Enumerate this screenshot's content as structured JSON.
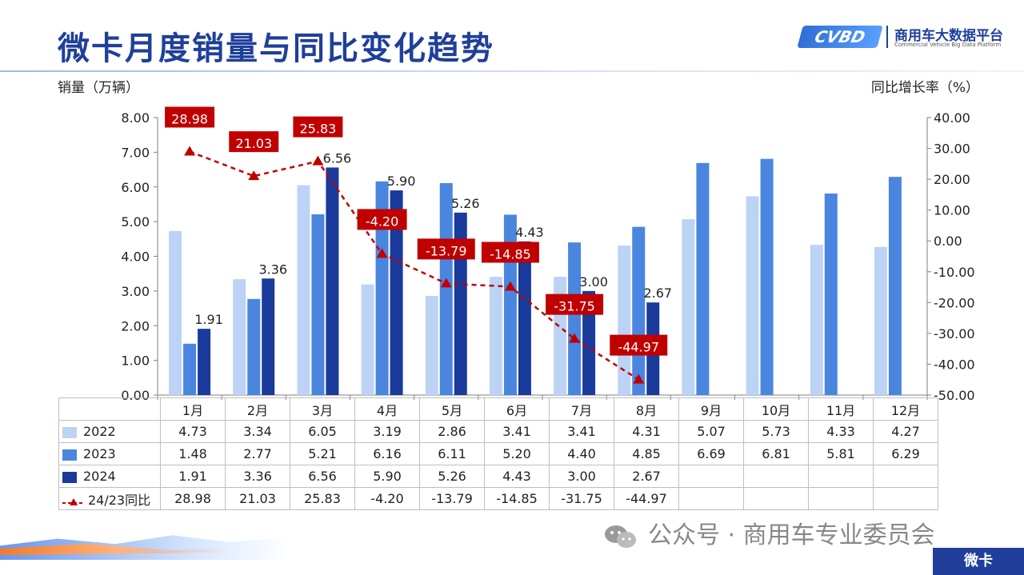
{
  "title": "微卡月度销量与同比变化趋势",
  "logo": {
    "mark": "CVBD",
    "name": "商用车大数据平台",
    "sub": "Commercial Vehicle Big Data Platform"
  },
  "colors": {
    "s2022": "#bcd3f5",
    "s2023": "#4a86e0",
    "s2024": "#1a3a9c",
    "yoy": "#c00000",
    "title": "#1f3f9a"
  },
  "chart_data": {
    "type": "bar",
    "ylabel_left": "销量（万辆）",
    "ylabel_right": "同比增长率（%）",
    "categories": [
      "1月",
      "2月",
      "3月",
      "4月",
      "5月",
      "6月",
      "7月",
      "8月",
      "9月",
      "10月",
      "11月",
      "12月"
    ],
    "y_left_ticks": [
      "0.00",
      "1.00",
      "2.00",
      "3.00",
      "4.00",
      "5.00",
      "6.00",
      "7.00",
      "8.00"
    ],
    "y_right_ticks": [
      "-50.00",
      "-40.00",
      "-30.00",
      "-20.00",
      "-10.00",
      "0.00",
      "10.00",
      "20.00",
      "30.00",
      "40.00"
    ],
    "ylim_left": [
      0,
      8
    ],
    "ylim_right": [
      -50,
      40
    ],
    "series": [
      {
        "name": "2022",
        "values": [
          4.73,
          3.34,
          6.05,
          3.19,
          2.86,
          3.41,
          3.41,
          4.31,
          5.07,
          5.73,
          4.33,
          4.27
        ]
      },
      {
        "name": "2023",
        "values": [
          1.48,
          2.77,
          5.21,
          6.16,
          6.11,
          5.2,
          4.4,
          4.85,
          6.69,
          6.81,
          5.81,
          6.29
        ]
      },
      {
        "name": "2024",
        "values": [
          1.91,
          3.36,
          6.56,
          5.9,
          5.26,
          4.43,
          3.0,
          2.67,
          null,
          null,
          null,
          null
        ]
      }
    ],
    "line_series": {
      "name": "24/23同比",
      "values": [
        28.98,
        21.03,
        25.83,
        -4.2,
        -13.79,
        -14.85,
        -31.75,
        -44.97
      ]
    },
    "table": {
      "rows": [
        {
          "label": "2022",
          "cells": [
            "4.73",
            "3.34",
            "6.05",
            "3.19",
            "2.86",
            "3.41",
            "3.41",
            "4.31",
            "5.07",
            "5.73",
            "4.33",
            "4.27"
          ]
        },
        {
          "label": "2023",
          "cells": [
            "1.48",
            "2.77",
            "5.21",
            "6.16",
            "6.11",
            "5.20",
            "4.40",
            "4.85",
            "6.69",
            "6.81",
            "5.81",
            "6.29"
          ]
        },
        {
          "label": "2024",
          "cells": [
            "1.91",
            "3.36",
            "6.56",
            "5.90",
            "5.26",
            "4.43",
            "3.00",
            "2.67",
            "",
            "",
            "",
            ""
          ]
        },
        {
          "label": "24/23同比",
          "cells": [
            "28.98",
            "21.03",
            "25.83",
            "-4.20",
            "-13.79",
            "-14.85",
            "-31.75",
            "-44.97",
            "",
            "",
            "",
            ""
          ]
        }
      ]
    }
  },
  "footer": {
    "wechat": "公众号 · 商用车专业委员会",
    "tag": "微卡"
  }
}
